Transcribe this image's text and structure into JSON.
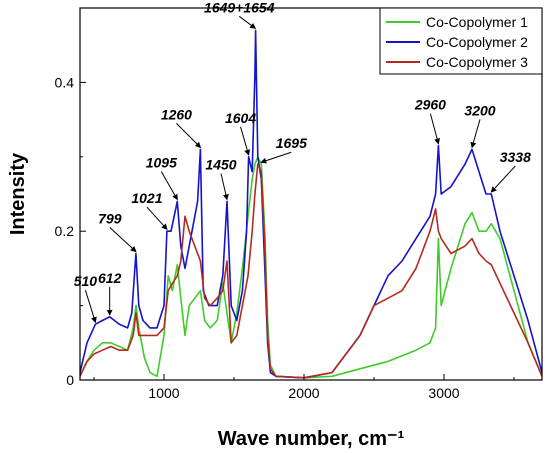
{
  "chart_data": {
    "type": "line",
    "xlabel": "Wave number, cm⁻¹",
    "ylabel": "Intensity",
    "xlim": [
      400,
      3700
    ],
    "ylim": [
      0,
      0.5
    ],
    "x_ticks": [
      1000,
      2000,
      3000
    ],
    "y_ticks": [
      0,
      0.2,
      0.4
    ],
    "y_tick_labels": [
      "0",
      "0.2",
      "0.4"
    ],
    "grid": false,
    "legend_position": "top-right",
    "series": [
      {
        "name": "Co-Copolymer 1",
        "color": "#3fcc2a",
        "points": [
          [
            400,
            0.005
          ],
          [
            450,
            0.025
          ],
          [
            500,
            0.04
          ],
          [
            560,
            0.05
          ],
          [
            620,
            0.05
          ],
          [
            680,
            0.045
          ],
          [
            740,
            0.04
          ],
          [
            780,
            0.07
          ],
          [
            800,
            0.1
          ],
          [
            820,
            0.07
          ],
          [
            860,
            0.03
          ],
          [
            900,
            0.01
          ],
          [
            950,
            0.005
          ],
          [
            1000,
            0.06
          ],
          [
            1030,
            0.14
          ],
          [
            1060,
            0.12
          ],
          [
            1095,
            0.155
          ],
          [
            1120,
            0.11
          ],
          [
            1150,
            0.06
          ],
          [
            1180,
            0.1
          ],
          [
            1220,
            0.11
          ],
          [
            1260,
            0.12
          ],
          [
            1290,
            0.08
          ],
          [
            1330,
            0.07
          ],
          [
            1380,
            0.08
          ],
          [
            1420,
            0.13
          ],
          [
            1450,
            0.09
          ],
          [
            1480,
            0.05
          ],
          [
            1520,
            0.09
          ],
          [
            1560,
            0.15
          ],
          [
            1600,
            0.22
          ],
          [
            1630,
            0.27
          ],
          [
            1649,
            0.29
          ],
          [
            1670,
            0.3
          ],
          [
            1695,
            0.29
          ],
          [
            1720,
            0.2
          ],
          [
            1740,
            0.08
          ],
          [
            1760,
            0.02
          ],
          [
            1800,
            0.005
          ],
          [
            2000,
            0.003
          ],
          [
            2200,
            0.005
          ],
          [
            2400,
            0.015
          ],
          [
            2600,
            0.025
          ],
          [
            2800,
            0.04
          ],
          [
            2900,
            0.05
          ],
          [
            2940,
            0.07
          ],
          [
            2960,
            0.19
          ],
          [
            2980,
            0.1
          ],
          [
            3050,
            0.15
          ],
          [
            3150,
            0.21
          ],
          [
            3200,
            0.225
          ],
          [
            3250,
            0.2
          ],
          [
            3300,
            0.2
          ],
          [
            3338,
            0.21
          ],
          [
            3400,
            0.19
          ],
          [
            3500,
            0.12
          ],
          [
            3600,
            0.05
          ],
          [
            3700,
            0.005
          ]
        ]
      },
      {
        "name": "Co-Copolymer 2",
        "color": "#1414c8",
        "points": [
          [
            400,
            0.01
          ],
          [
            450,
            0.05
          ],
          [
            510,
            0.075
          ],
          [
            560,
            0.08
          ],
          [
            612,
            0.085
          ],
          [
            680,
            0.075
          ],
          [
            740,
            0.07
          ],
          [
            770,
            0.09
          ],
          [
            799,
            0.17
          ],
          [
            820,
            0.1
          ],
          [
            850,
            0.08
          ],
          [
            900,
            0.07
          ],
          [
            950,
            0.07
          ],
          [
            1000,
            0.1
          ],
          [
            1021,
            0.2
          ],
          [
            1050,
            0.2
          ],
          [
            1095,
            0.24
          ],
          [
            1120,
            0.18
          ],
          [
            1150,
            0.15
          ],
          [
            1200,
            0.2
          ],
          [
            1240,
            0.24
          ],
          [
            1260,
            0.31
          ],
          [
            1280,
            0.12
          ],
          [
            1320,
            0.1
          ],
          [
            1380,
            0.1
          ],
          [
            1420,
            0.14
          ],
          [
            1450,
            0.24
          ],
          [
            1480,
            0.1
          ],
          [
            1520,
            0.08
          ],
          [
            1560,
            0.12
          ],
          [
            1590,
            0.2
          ],
          [
            1604,
            0.3
          ],
          [
            1630,
            0.28
          ],
          [
            1649,
            0.41
          ],
          [
            1654,
            0.47
          ],
          [
            1670,
            0.3
          ],
          [
            1695,
            0.27
          ],
          [
            1720,
            0.15
          ],
          [
            1740,
            0.05
          ],
          [
            1760,
            0.01
          ],
          [
            1800,
            0.005
          ],
          [
            2000,
            0.003
          ],
          [
            2200,
            0.01
          ],
          [
            2400,
            0.06
          ],
          [
            2500,
            0.1
          ],
          [
            2600,
            0.14
          ],
          [
            2700,
            0.16
          ],
          [
            2800,
            0.19
          ],
          [
            2900,
            0.22
          ],
          [
            2940,
            0.25
          ],
          [
            2960,
            0.315
          ],
          [
            2980,
            0.25
          ],
          [
            3050,
            0.26
          ],
          [
            3150,
            0.29
          ],
          [
            3200,
            0.31
          ],
          [
            3250,
            0.28
          ],
          [
            3300,
            0.25
          ],
          [
            3338,
            0.25
          ],
          [
            3400,
            0.2
          ],
          [
            3500,
            0.14
          ],
          [
            3600,
            0.08
          ],
          [
            3700,
            0.01
          ]
        ]
      },
      {
        "name": "Co-Copolymer 3",
        "color": "#b52a1e",
        "points": [
          [
            400,
            0.005
          ],
          [
            450,
            0.025
          ],
          [
            500,
            0.035
          ],
          [
            560,
            0.04
          ],
          [
            620,
            0.045
          ],
          [
            680,
            0.04
          ],
          [
            740,
            0.04
          ],
          [
            780,
            0.06
          ],
          [
            800,
            0.09
          ],
          [
            820,
            0.06
          ],
          [
            860,
            0.06
          ],
          [
            900,
            0.06
          ],
          [
            950,
            0.06
          ],
          [
            1000,
            0.07
          ],
          [
            1030,
            0.12
          ],
          [
            1060,
            0.13
          ],
          [
            1095,
            0.14
          ],
          [
            1120,
            0.16
          ],
          [
            1150,
            0.22
          ],
          [
            1180,
            0.2
          ],
          [
            1220,
            0.18
          ],
          [
            1260,
            0.16
          ],
          [
            1290,
            0.11
          ],
          [
            1330,
            0.1
          ],
          [
            1380,
            0.11
          ],
          [
            1420,
            0.12
          ],
          [
            1450,
            0.16
          ],
          [
            1480,
            0.05
          ],
          [
            1520,
            0.06
          ],
          [
            1560,
            0.1
          ],
          [
            1600,
            0.14
          ],
          [
            1630,
            0.2
          ],
          [
            1649,
            0.25
          ],
          [
            1670,
            0.29
          ],
          [
            1695,
            0.28
          ],
          [
            1720,
            0.18
          ],
          [
            1740,
            0.06
          ],
          [
            1760,
            0.015
          ],
          [
            1800,
            0.005
          ],
          [
            2000,
            0.003
          ],
          [
            2200,
            0.01
          ],
          [
            2400,
            0.06
          ],
          [
            2500,
            0.1
          ],
          [
            2600,
            0.11
          ],
          [
            2700,
            0.12
          ],
          [
            2800,
            0.15
          ],
          [
            2900,
            0.2
          ],
          [
            2940,
            0.23
          ],
          [
            2960,
            0.2
          ],
          [
            2980,
            0.19
          ],
          [
            3050,
            0.17
          ],
          [
            3150,
            0.18
          ],
          [
            3200,
            0.19
          ],
          [
            3250,
            0.17
          ],
          [
            3300,
            0.16
          ],
          [
            3338,
            0.155
          ],
          [
            3400,
            0.13
          ],
          [
            3500,
            0.09
          ],
          [
            3600,
            0.05
          ],
          [
            3700,
            0.005
          ]
        ]
      }
    ],
    "annotations": [
      {
        "label": "510",
        "x": 510,
        "y": 0.075
      },
      {
        "label": "612",
        "x": 612,
        "y": 0.085
      },
      {
        "label": "799",
        "x": 799,
        "y": 0.17
      },
      {
        "label": "1021",
        "x": 1021,
        "y": 0.2
      },
      {
        "label": "1095",
        "x": 1095,
        "y": 0.24
      },
      {
        "label": "1260",
        "x": 1260,
        "y": 0.31
      },
      {
        "label": "1450",
        "x": 1450,
        "y": 0.24
      },
      {
        "label": "1604",
        "x": 1604,
        "y": 0.3
      },
      {
        "label": "1649+1654",
        "x": 1652,
        "y": 0.47
      },
      {
        "label": "1695",
        "x": 1695,
        "y": 0.29
      },
      {
        "label": "2960",
        "x": 2960,
        "y": 0.315
      },
      {
        "label": "3200",
        "x": 3200,
        "y": 0.31
      },
      {
        "label": "3338",
        "x": 3338,
        "y": 0.25
      }
    ]
  }
}
